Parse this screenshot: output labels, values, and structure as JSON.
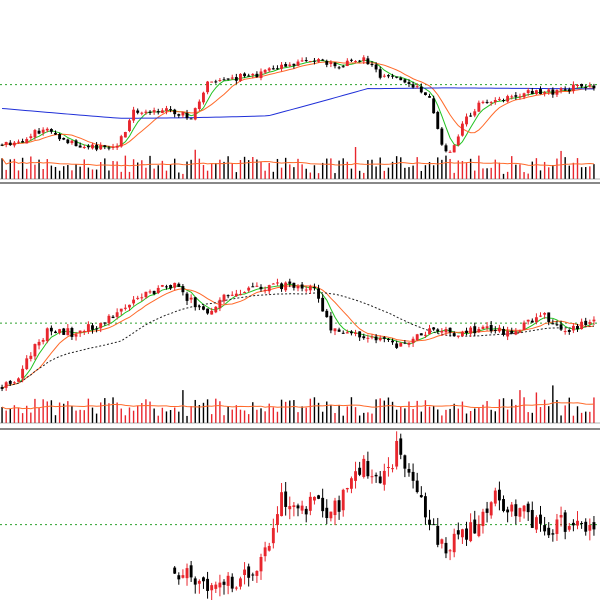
{
  "colors": {
    "up": "#e8262d",
    "down": "#000000",
    "ma_fast": "#22c322",
    "ma_mid": "#ff6a2a",
    "ma_slow": "#1f2fd8",
    "ma_dashed": "#222222",
    "ref_line": "#2ca02c",
    "vol_ma": "#ff6a2a",
    "divider": "#111111",
    "background": "#ffffff"
  },
  "chart_data": [
    {
      "type": "candlestick",
      "title": "",
      "xlabel": "",
      "ylabel": "",
      "grid": false,
      "legend": "none",
      "ref_line": 100,
      "ylim": [
        62,
        120
      ],
      "vol_ylim": [
        0,
        100
      ],
      "anchors": [
        [
          0,
          70
        ],
        [
          5,
          72
        ],
        [
          10,
          78
        ],
        [
          14,
          74
        ],
        [
          18,
          70
        ],
        [
          24,
          68
        ],
        [
          28,
          69
        ],
        [
          32,
          86
        ],
        [
          40,
          87
        ],
        [
          46,
          84
        ],
        [
          50,
          100
        ],
        [
          58,
          104
        ],
        [
          64,
          106
        ],
        [
          70,
          110
        ],
        [
          76,
          112
        ],
        [
          82,
          110
        ],
        [
          88,
          113
        ],
        [
          92,
          105
        ],
        [
          97,
          102
        ],
        [
          100,
          99
        ],
        [
          104,
          94
        ],
        [
          107,
          70
        ],
        [
          109,
          66
        ],
        [
          112,
          80
        ],
        [
          116,
          90
        ],
        [
          120,
          92
        ],
        [
          124,
          95
        ],
        [
          128,
          96
        ],
        [
          132,
          96
        ],
        [
          136,
          97
        ],
        [
          140,
          99
        ],
        [
          144,
          98
        ]
      ],
      "vol_range": [
        12,
        60
      ],
      "vol_spikes": [
        [
          47,
          75
        ],
        [
          62,
          50
        ],
        [
          86,
          82
        ],
        [
          108,
          60
        ],
        [
          136,
          72
        ]
      ],
      "overlays": [
        {
          "name": "",
          "kind": "ma",
          "period": 5,
          "color_key": "ma_fast",
          "dash": false
        },
        {
          "name": "",
          "kind": "ma",
          "period": 10,
          "color_key": "ma_mid",
          "dash": false
        },
        {
          "name": "",
          "kind": "ma",
          "period": 60,
          "color_key": "ma_slow",
          "dash": false,
          "offset": [
            -8,
            88,
            84,
            0
          ]
        }
      ],
      "vol_ma": true,
      "seed": 11
    },
    {
      "type": "candlestick",
      "title": "",
      "xlabel": "",
      "ylabel": "",
      "grid": false,
      "legend": "none",
      "ref_line": 100,
      "ylim": [
        74,
        117
      ],
      "vol_ylim": [
        0,
        100
      ],
      "anchors": [
        [
          0,
          76
        ],
        [
          4,
          80
        ],
        [
          8,
          92
        ],
        [
          12,
          98
        ],
        [
          18,
          96
        ],
        [
          24,
          100
        ],
        [
          30,
          106
        ],
        [
          36,
          112
        ],
        [
          42,
          114
        ],
        [
          46,
          108
        ],
        [
          50,
          104
        ],
        [
          54,
          111
        ],
        [
          60,
          112
        ],
        [
          66,
          114
        ],
        [
          72,
          115
        ],
        [
          76,
          113
        ],
        [
          80,
          98
        ],
        [
          86,
          96
        ],
        [
          92,
          94
        ],
        [
          98,
          91
        ],
        [
          104,
          98
        ],
        [
          110,
          96
        ],
        [
          116,
          98
        ],
        [
          120,
          97
        ],
        [
          124,
          96
        ],
        [
          128,
          101
        ],
        [
          132,
          104
        ],
        [
          136,
          96
        ],
        [
          140,
          99
        ],
        [
          144,
          101
        ]
      ],
      "vol_range": [
        15,
        55
      ],
      "vol_spikes": [
        [
          44,
          70
        ],
        [
          126,
          70
        ],
        [
          130,
          65
        ],
        [
          134,
          80
        ]
      ],
      "overlays": [
        {
          "name": "",
          "kind": "ma",
          "period": 5,
          "color_key": "ma_fast",
          "dash": false
        },
        {
          "name": "",
          "kind": "ma",
          "period": 10,
          "color_key": "ma_mid",
          "dash": false
        },
        {
          "name": "",
          "kind": "ma",
          "period": 30,
          "color_key": "ma_dashed",
          "dash": true
        }
      ],
      "vol_ma": true,
      "seed": 23
    },
    {
      "type": "candlestick",
      "title": "",
      "xlabel": "",
      "ylabel": "",
      "grid": false,
      "legend": "none",
      "ref_line": 100,
      "ylim": [
        88,
        113
      ],
      "anchors_sparse": true,
      "start_index": 42,
      "anchors": [
        [
          42,
          93
        ],
        [
          46,
          92
        ],
        [
          50,
          91
        ],
        [
          56,
          91
        ],
        [
          60,
          92
        ],
        [
          64,
          96
        ],
        [
          68,
          104
        ],
        [
          72,
          102
        ],
        [
          76,
          104
        ],
        [
          80,
          102
        ],
        [
          84,
          105
        ],
        [
          88,
          110
        ],
        [
          92,
          106
        ],
        [
          96,
          112
        ],
        [
          100,
          108
        ],
        [
          104,
          100
        ],
        [
          108,
          96
        ],
        [
          112,
          98
        ],
        [
          116,
          100
        ],
        [
          120,
          104
        ],
        [
          124,
          103
        ],
        [
          128,
          101
        ],
        [
          132,
          99
        ],
        [
          136,
          100
        ],
        [
          140,
          100
        ],
        [
          144,
          100
        ]
      ],
      "overlays": [],
      "vol_ma": false,
      "seed": 37
    }
  ]
}
